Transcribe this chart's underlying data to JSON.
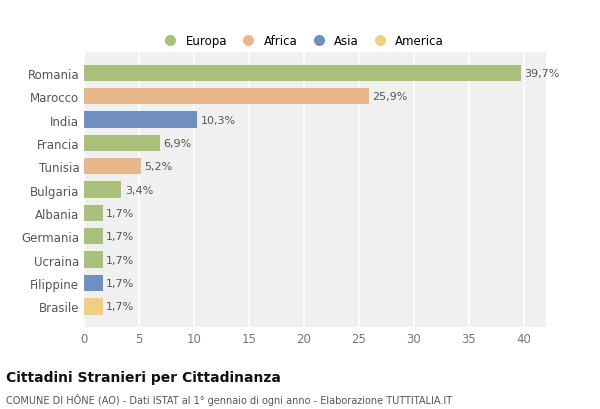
{
  "countries": [
    "Romania",
    "Marocco",
    "India",
    "Francia",
    "Tunisia",
    "Bulgaria",
    "Albania",
    "Germania",
    "Ucraina",
    "Filippine",
    "Brasile"
  ],
  "values": [
    39.7,
    25.9,
    10.3,
    6.9,
    5.2,
    3.4,
    1.7,
    1.7,
    1.7,
    1.7,
    1.7
  ],
  "labels": [
    "39,7%",
    "25,9%",
    "10,3%",
    "6,9%",
    "5,2%",
    "3,4%",
    "1,7%",
    "1,7%",
    "1,7%",
    "1,7%",
    "1,7%"
  ],
  "colors": [
    "#a8c07a",
    "#e8b88a",
    "#6e8fbf",
    "#a8c07a",
    "#e8b88a",
    "#a8c07a",
    "#a8c07a",
    "#a8c07a",
    "#a8c07a",
    "#6e8fbf",
    "#f0d080"
  ],
  "legend_labels": [
    "Europa",
    "Africa",
    "Asia",
    "America"
  ],
  "legend_colors": [
    "#a8c07a",
    "#e8b88a",
    "#6e8fbf",
    "#f0d080"
  ],
  "title": "Cittadini Stranieri per Cittadinanza",
  "subtitle": "COMUNE DI HÔNE (AO) - Dati ISTAT al 1° gennaio di ogni anno - Elaborazione TUTTITALIA.IT",
  "xlim": [
    0,
    42
  ],
  "xticks": [
    0,
    5,
    10,
    15,
    20,
    25,
    30,
    35,
    40
  ],
  "bg_color": "#ffffff",
  "plot_bg_color": "#f0f0f0",
  "grid_color": "#ffffff"
}
